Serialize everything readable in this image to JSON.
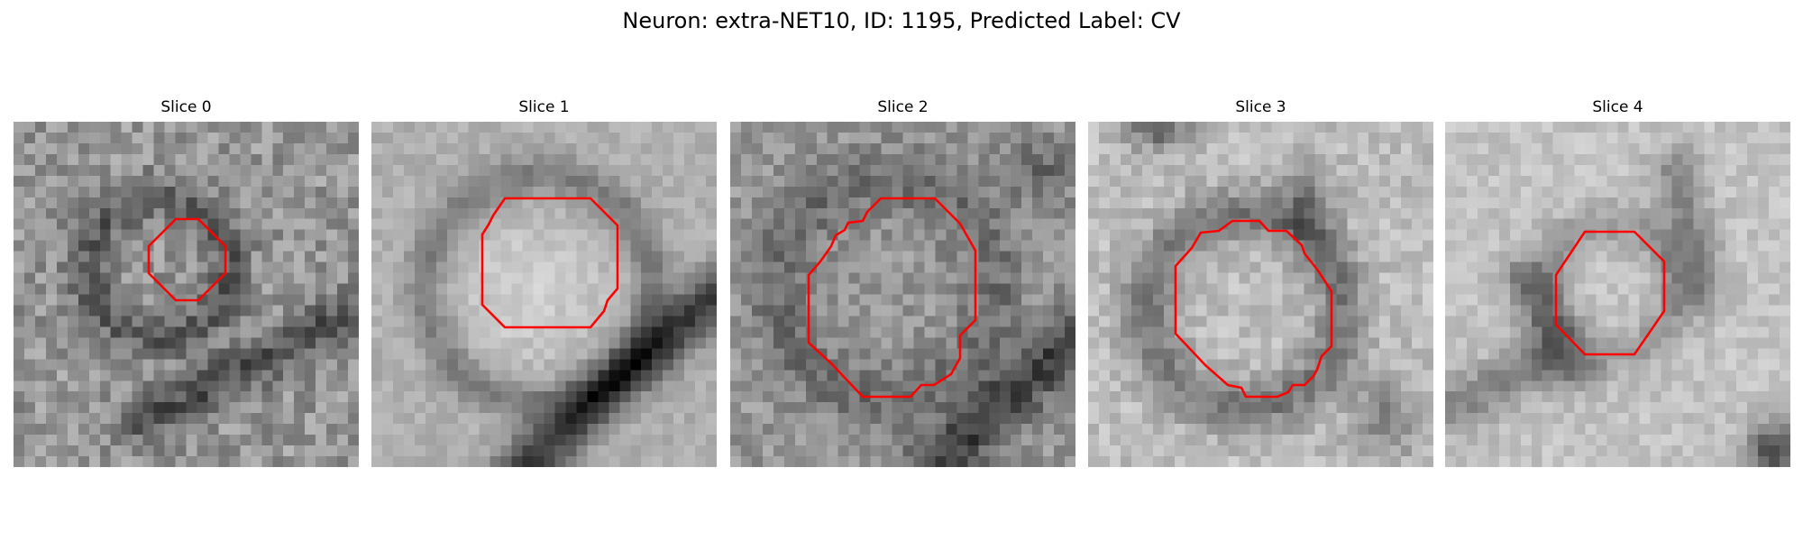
{
  "figure": {
    "title": "Neuron: extra-NET10, ID: 1195, Predicted Label: CV"
  },
  "colors": {
    "background": "#ffffff",
    "contour": "#ff0000",
    "colormap": "grayscale"
  },
  "panels": [
    {
      "title": "Slice 0"
    },
    {
      "title": "Slice 1"
    },
    {
      "title": "Slice 2"
    },
    {
      "title": "Slice 3"
    },
    {
      "title": "Slice 4"
    }
  ]
}
